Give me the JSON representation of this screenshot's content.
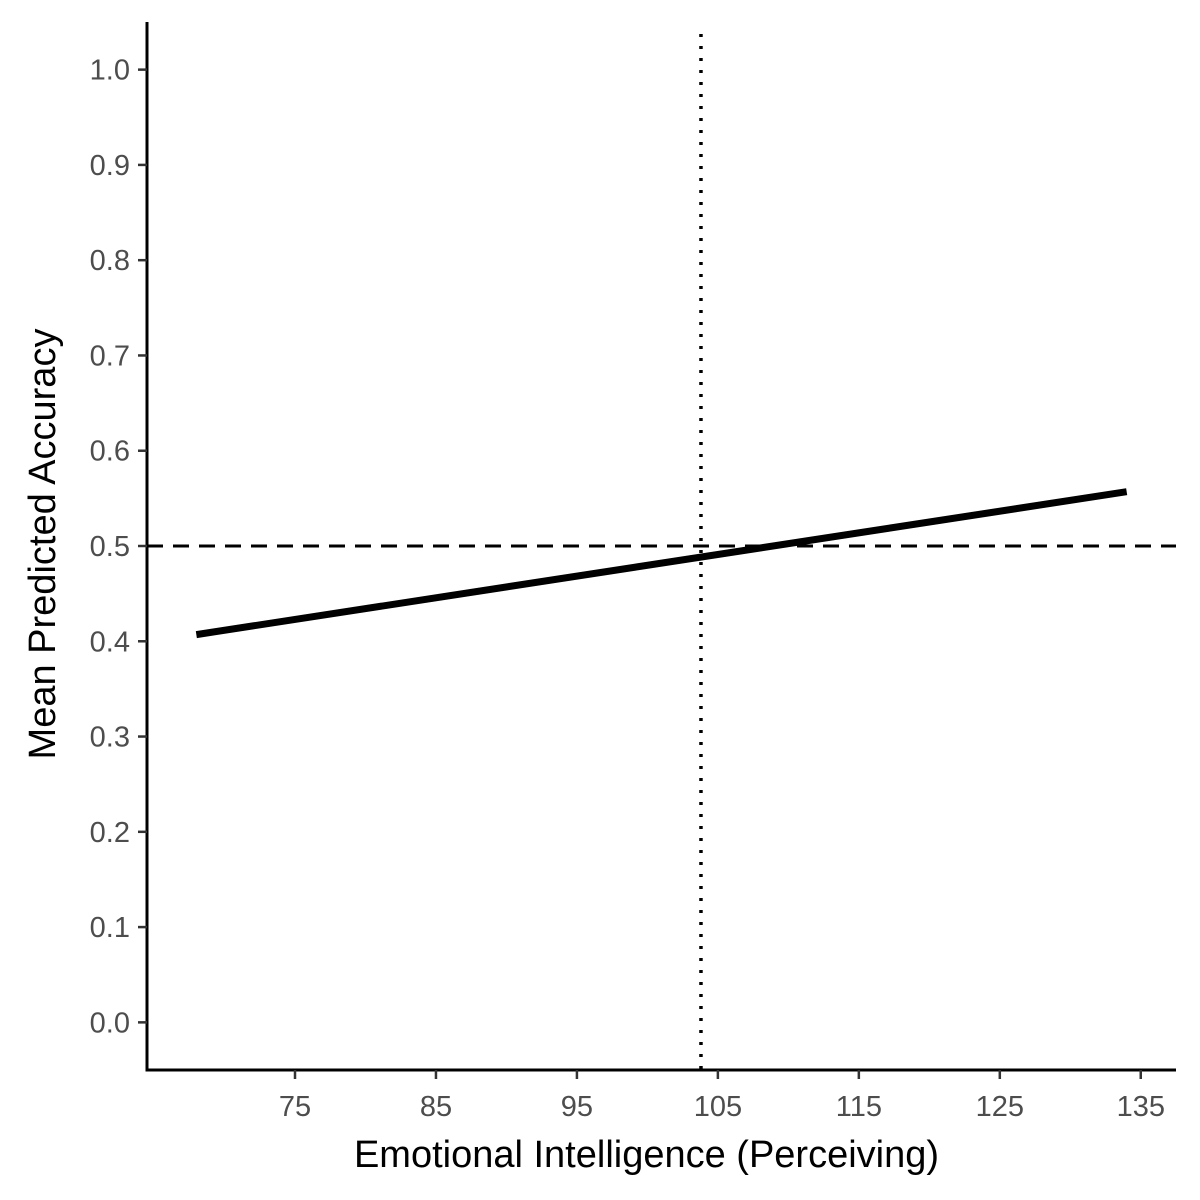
{
  "chart_data": {
    "type": "line",
    "title": "",
    "xlabel": "Emotional Intelligence (Perceiving)",
    "ylabel": "Mean Predicted Accuracy",
    "xlim": [
      64.5,
      137.5
    ],
    "ylim": [
      -0.05,
      1.05
    ],
    "x_ticks": [
      75,
      85,
      95,
      105,
      115,
      125,
      135
    ],
    "x_tick_labels": [
      "75",
      "85",
      "95",
      "105",
      "115",
      "125",
      "135"
    ],
    "y_ticks": [
      0.0,
      0.1,
      0.2,
      0.3,
      0.4,
      0.5,
      0.6,
      0.7,
      0.8,
      0.9,
      1.0
    ],
    "y_tick_labels": [
      "0.0",
      "0.1",
      "0.2",
      "0.3",
      "0.4",
      "0.5",
      "0.6",
      "0.7",
      "0.8",
      "0.9",
      "1.0"
    ],
    "grid": false,
    "legend": "none",
    "series": [
      {
        "x": [
          68,
          134
        ],
        "y": [
          0.407,
          0.557
        ],
        "color": "#000000",
        "style": "solid"
      }
    ],
    "reference_lines": [
      {
        "orientation": "horizontal",
        "value": 0.5,
        "style": "dashed",
        "color": "#000000"
      },
      {
        "orientation": "vertical",
        "value": 103.8,
        "style": "dotted",
        "color": "#000000"
      }
    ]
  }
}
